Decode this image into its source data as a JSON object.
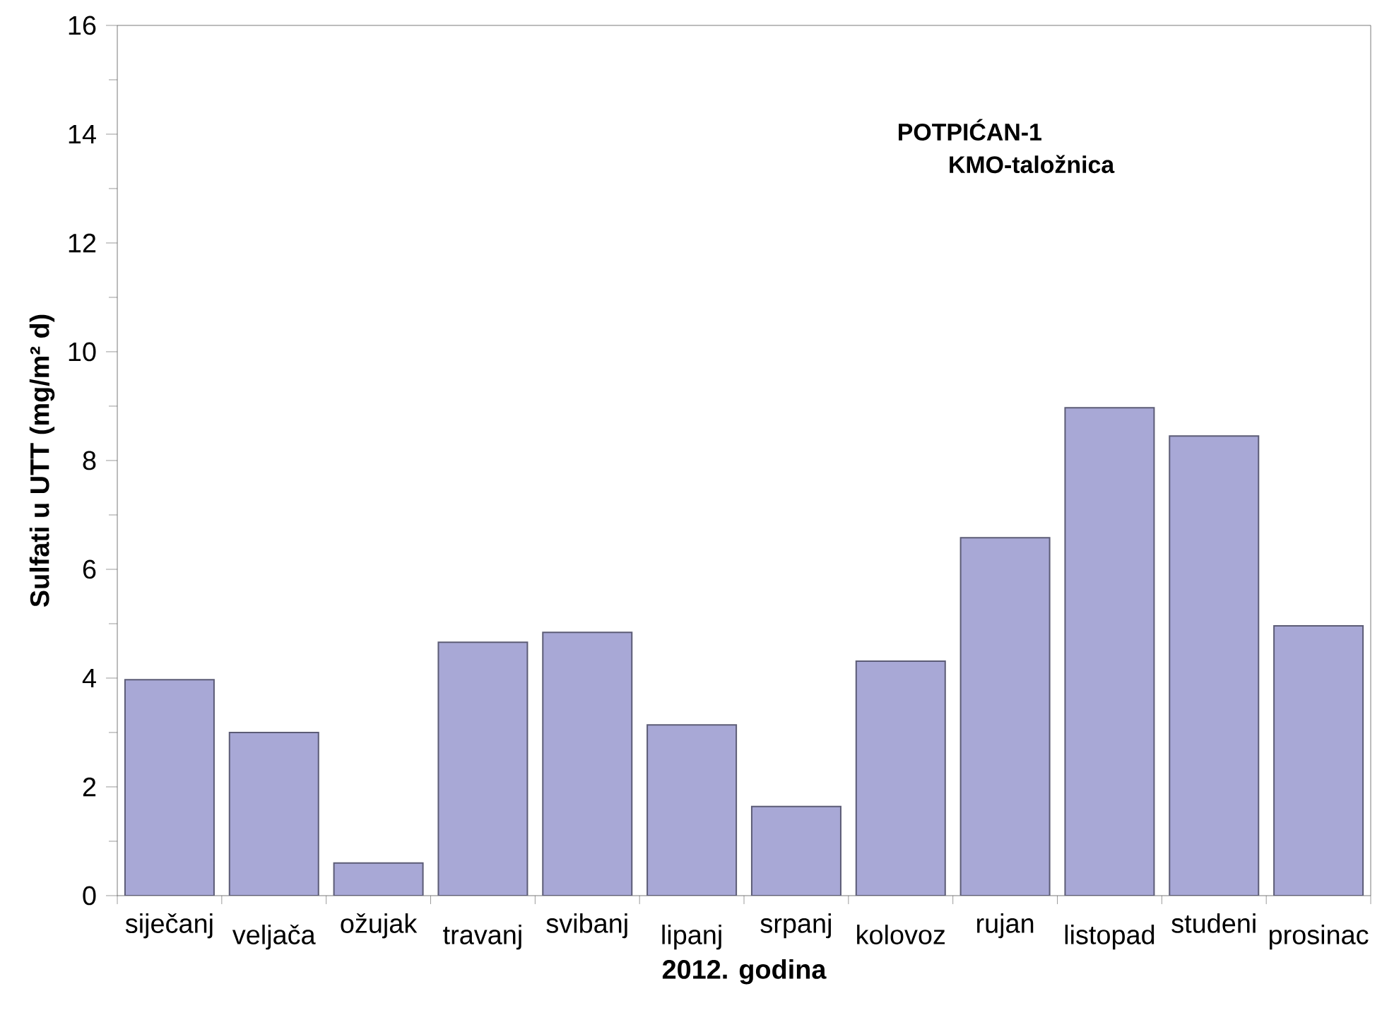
{
  "chart_data": {
    "type": "bar",
    "title": "POTPIĆAN-1",
    "subtitle": "KMO-taložnica",
    "xlabel": "2012. godina",
    "ylabel": "Sulfati u UTT (mg/m² d)",
    "categories": [
      "siječanj",
      "veljača",
      "ožujak",
      "travanj",
      "svibanj",
      "lipanj",
      "srpanj",
      "kolovoz",
      "rujan",
      "listopad",
      "studeni",
      "prosinac"
    ],
    "values": [
      3.97,
      3.0,
      0.6,
      4.66,
      4.84,
      3.14,
      1.64,
      4.31,
      6.58,
      8.97,
      8.45,
      4.96
    ],
    "color": "#a8a8d6",
    "ylim": [
      0,
      16
    ],
    "yticks": [
      0,
      2,
      4,
      6,
      8,
      10,
      12,
      14,
      16
    ],
    "grid": false
  }
}
